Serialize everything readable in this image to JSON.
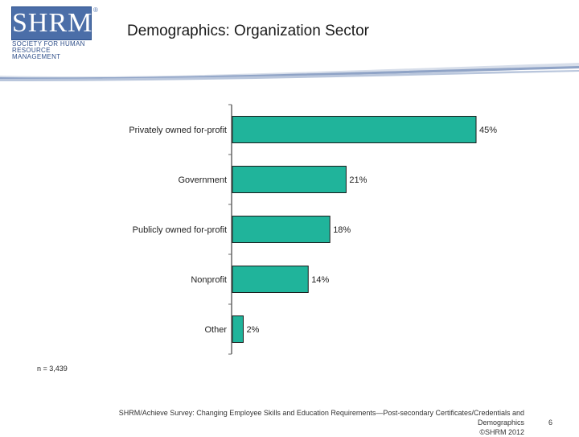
{
  "logo": {
    "mark": "SHRM",
    "registered": "®",
    "tagline_lines": [
      "SOCIETY FOR HUMAN",
      "RESOURCE MANAGEMENT"
    ]
  },
  "slide": {
    "title": "Demographics: Organization Sector",
    "sample_size": "n = 3,439",
    "source_line": "SHRM/Achieve Survey: Changing Employee Skills and Education Requirements—Post-secondary Certificates/Credentials and Demographics",
    "copyright": "©SHRM 2012",
    "page_number": "6"
  },
  "colors": {
    "bar": "#20b49b",
    "bar_stroke": "#1a1a1a",
    "axis": "#666666",
    "brand_blue": "#4b6ea8"
  },
  "chart_data": {
    "type": "bar",
    "orientation": "horizontal",
    "title": "Demographics: Organization Sector",
    "xlabel": "",
    "ylabel": "",
    "xlim": [
      0,
      45
    ],
    "grid": false,
    "legend": "none",
    "categories": [
      "Privately owned for-profit",
      "Government",
      "Publicly owned for-profit",
      "Nonprofit",
      "Other"
    ],
    "values": [
      45,
      21,
      18,
      14,
      2
    ],
    "value_labels": [
      "45%",
      "21%",
      "18%",
      "14%",
      "2%"
    ]
  }
}
